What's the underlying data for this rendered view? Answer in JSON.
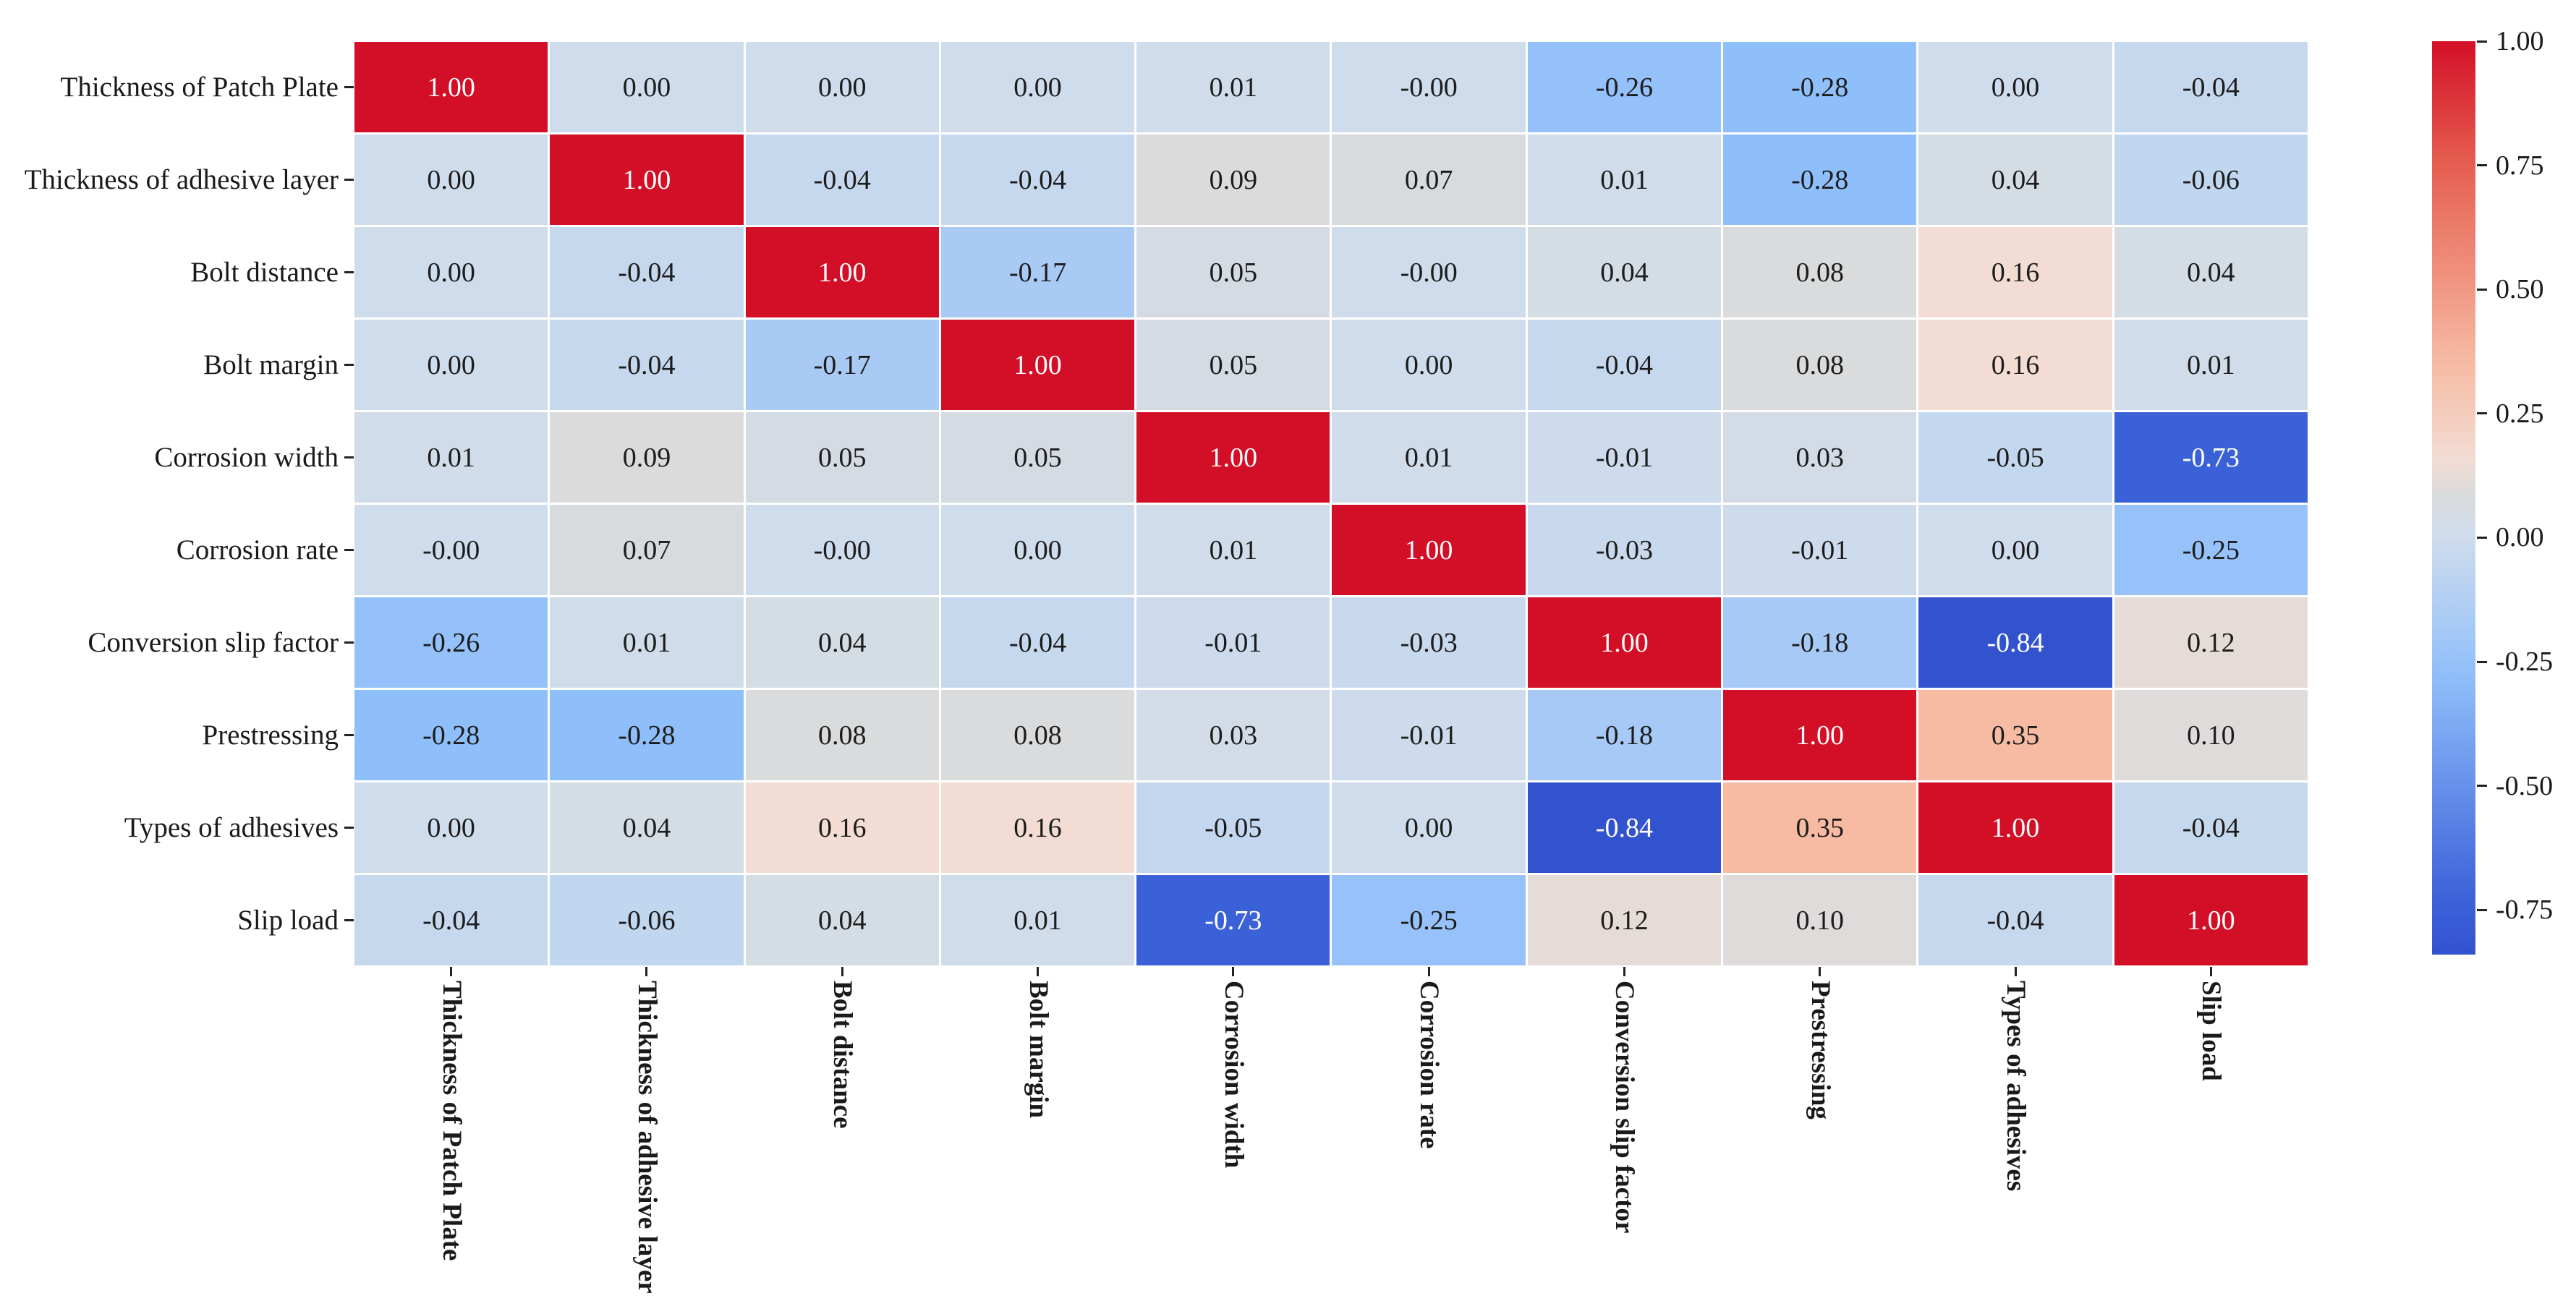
{
  "figure": {
    "description": "Correlation matrix heatmap of patch plate joint parameters",
    "background_color": "#ffffff",
    "text_color": "#1a1a1a"
  },
  "chart_data": {
    "type": "heatmap",
    "title": "",
    "xlabel": "",
    "ylabel": "",
    "labels": [
      "Thickness of Patch Plate",
      "Thickness of adhesive layer",
      "Bolt distance",
      "Bolt margin",
      "Corrosion width",
      "Corrosion rate",
      "Conversion slip factor",
      "Prestressing",
      "Types of adhesives",
      "Slip load"
    ],
    "matrix": [
      [
        1.0,
        0.0,
        0.0,
        0.0,
        0.01,
        -0.0,
        -0.26,
        -0.28,
        0.0,
        -0.04
      ],
      [
        0.0,
        1.0,
        -0.04,
        -0.04,
        0.09,
        0.07,
        0.01,
        -0.28,
        0.04,
        -0.06
      ],
      [
        0.0,
        -0.04,
        1.0,
        -0.17,
        0.05,
        -0.0,
        0.04,
        0.08,
        0.16,
        0.04
      ],
      [
        0.0,
        -0.04,
        -0.17,
        1.0,
        0.05,
        0.0,
        -0.04,
        0.08,
        0.16,
        0.01
      ],
      [
        0.01,
        0.09,
        0.05,
        0.05,
        1.0,
        0.01,
        -0.01,
        0.03,
        -0.05,
        -0.73
      ],
      [
        -0.0,
        0.07,
        -0.0,
        0.0,
        0.01,
        1.0,
        -0.03,
        -0.01,
        0.0,
        -0.25
      ],
      [
        -0.26,
        0.01,
        0.04,
        -0.04,
        -0.01,
        -0.03,
        1.0,
        -0.18,
        -0.84,
        0.12
      ],
      [
        -0.28,
        -0.28,
        0.08,
        0.08,
        0.03,
        -0.01,
        -0.18,
        1.0,
        0.35,
        0.1
      ],
      [
        0.0,
        0.04,
        0.16,
        0.16,
        -0.05,
        0.0,
        -0.84,
        0.35,
        1.0,
        -0.04
      ],
      [
        -0.04,
        -0.06,
        0.04,
        0.01,
        -0.73,
        -0.25,
        0.12,
        0.1,
        -0.04,
        1.0
      ]
    ],
    "annot": [
      [
        "1.00",
        "0.00",
        "0.00",
        "0.00",
        "0.01",
        "-0.00",
        "-0.26",
        "-0.28",
        "0.00",
        "-0.04"
      ],
      [
        "0.00",
        "1.00",
        "-0.04",
        "-0.04",
        "0.09",
        "0.07",
        "0.01",
        "-0.28",
        "0.04",
        "-0.06"
      ],
      [
        "0.00",
        "-0.04",
        "1.00",
        "-0.17",
        "0.05",
        "-0.00",
        "0.04",
        "0.08",
        "0.16",
        "0.04"
      ],
      [
        "0.00",
        "-0.04",
        "-0.17",
        "1.00",
        "0.05",
        "0.00",
        "-0.04",
        "0.08",
        "0.16",
        "0.01"
      ],
      [
        "0.01",
        "0.09",
        "0.05",
        "0.05",
        "1.00",
        "0.01",
        "-0.01",
        "0.03",
        "-0.05",
        "-0.73"
      ],
      [
        "-0.00",
        "0.07",
        "-0.00",
        "0.00",
        "0.01",
        "1.00",
        "-0.03",
        "-0.01",
        "0.00",
        "-0.25"
      ],
      [
        "-0.26",
        "0.01",
        "0.04",
        "-0.04",
        "-0.01",
        "-0.03",
        "1.00",
        "-0.18",
        "-0.84",
        "0.12"
      ],
      [
        "-0.28",
        "-0.28",
        "0.08",
        "0.08",
        "0.03",
        "-0.01",
        "-0.18",
        "1.00",
        "0.35",
        "0.10"
      ],
      [
        "0.00",
        "0.04",
        "0.16",
        "0.16",
        "-0.05",
        "0.00",
        "-0.84",
        "0.35",
        "1.00",
        "-0.04"
      ],
      [
        "-0.04",
        "-0.06",
        "0.04",
        "0.01",
        "-0.73",
        "-0.25",
        "0.12",
        "0.10",
        "-0.04",
        "1.00"
      ]
    ],
    "vmin": -0.84,
    "vmax": 1.0,
    "grid": false,
    "legend_position": "right-colorbar",
    "colorbar": {
      "ticks": [
        {
          "label": "1.00",
          "value": 1.0
        },
        {
          "label": "0.75",
          "value": 0.75
        },
        {
          "label": "0.50",
          "value": 0.5
        },
        {
          "label": "0.25",
          "value": 0.25
        },
        {
          "label": "0.00",
          "value": 0.0
        },
        {
          "label": "-0.25",
          "value": -0.25
        },
        {
          "label": "-0.50",
          "value": -0.5
        },
        {
          "label": "-0.75",
          "value": -0.75
        }
      ]
    },
    "colormap_name": "coolwarm-like (blue-gray-red diverging)",
    "colormap_stops": [
      {
        "t": 0.0,
        "color": "#3353CE"
      },
      {
        "t": 0.06,
        "color": "#3B61D9"
      },
      {
        "t": 0.304,
        "color": "#8FBFFB"
      },
      {
        "t": 0.457,
        "color": "#CFDCEC"
      },
      {
        "t": 0.5,
        "color": "#D9DBDC"
      },
      {
        "t": 0.543,
        "color": "#F2DCD3"
      },
      {
        "t": 0.647,
        "color": "#F7BBA4"
      },
      {
        "t": 0.864,
        "color": "#E65F50"
      },
      {
        "t": 1.0,
        "color": "#D30F27"
      }
    ],
    "annotation_text_dark": "#1c1c1c",
    "annotation_text_light": "#ffffff"
  }
}
